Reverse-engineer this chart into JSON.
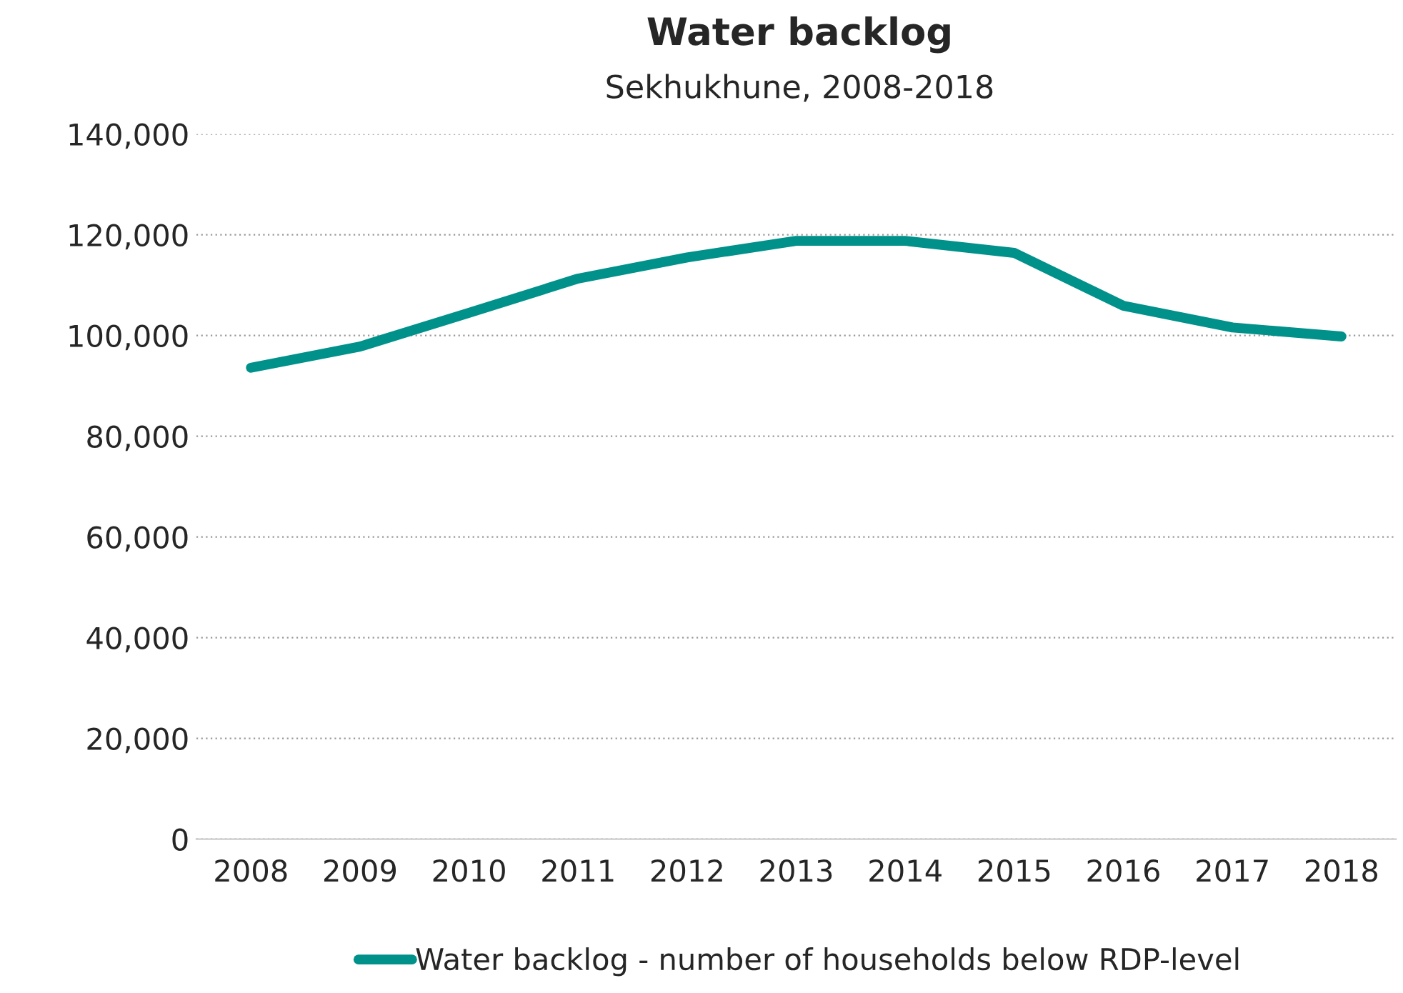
{
  "chart_data": {
    "type": "line",
    "title": "Water backlog",
    "subtitle": "Sekhukhune, 2008-2018",
    "categories": [
      "2008",
      "2009",
      "2010",
      "2011",
      "2012",
      "2013",
      "2014",
      "2015",
      "2016",
      "2017",
      "2018"
    ],
    "series": [
      {
        "name": "Water backlog - number of households below RDP-level",
        "color": "#00918a",
        "values": [
          93600,
          97800,
          104500,
          111300,
          115500,
          118800,
          118800,
          116400,
          105900,
          101600,
          99800
        ]
      }
    ],
    "ylim": [
      0,
      140000
    ],
    "yticks": [
      {
        "value": 0,
        "label": "0"
      },
      {
        "value": 20000,
        "label": "20,000"
      },
      {
        "value": 40000,
        "label": "40,000"
      },
      {
        "value": 60000,
        "label": "60,000"
      },
      {
        "value": 80000,
        "label": "80,000"
      },
      {
        "value": 100000,
        "label": "100,000"
      },
      {
        "value": 120000,
        "label": "120,000"
      },
      {
        "value": 140000,
        "label": "140,000"
      }
    ],
    "grid": "y",
    "legend": "bottom",
    "marker": "none",
    "line_style": "solid"
  }
}
